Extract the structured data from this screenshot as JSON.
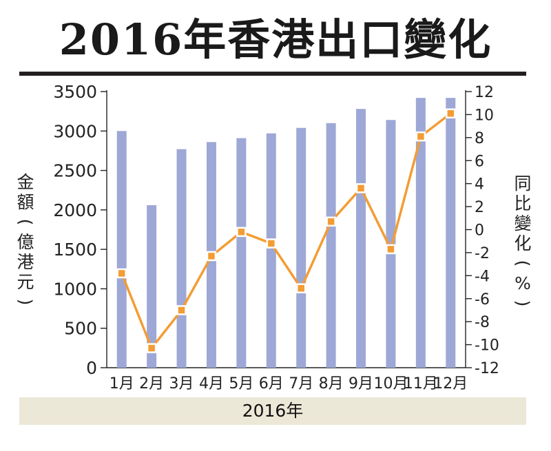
{
  "title": "2016年香港出口變化",
  "chart_data": {
    "type": "bar",
    "title": "2016年香港出口變化",
    "xlabel": "2016年",
    "ylabel": "金額(億港元)",
    "y2label": "同比變化(%)",
    "categories": [
      "1月",
      "2月",
      "3月",
      "4月",
      "5月",
      "6月",
      "7月",
      "8月",
      "9月",
      "10月",
      "11月",
      "12月"
    ],
    "series": [
      {
        "axis": "left",
        "type": "bar",
        "color": "#9ea8d6",
        "values": [
          3000,
          2060,
          2770,
          2860,
          2910,
          2970,
          3040,
          3100,
          3280,
          3140,
          3420,
          3420
        ]
      },
      {
        "axis": "right",
        "type": "line",
        "color": "#f39c33",
        "values": [
          -3.8,
          -10.3,
          -7.0,
          -2.3,
          -0.2,
          -1.2,
          -5.1,
          0.7,
          3.6,
          -1.7,
          8.1,
          10.1
        ]
      }
    ],
    "ylim": [
      0,
      3500
    ],
    "yticks": [
      "0",
      "500",
      "1000",
      "1500",
      "2000",
      "2500",
      "3000",
      "3500"
    ],
    "y2lim": [
      -12,
      12
    ],
    "y2ticks": [
      "-12",
      "-10",
      "-8",
      "-6",
      "-4",
      "-2",
      "0",
      "2",
      "4",
      "6",
      "8",
      "10",
      "12"
    ],
    "grid": false,
    "legend": "none"
  }
}
